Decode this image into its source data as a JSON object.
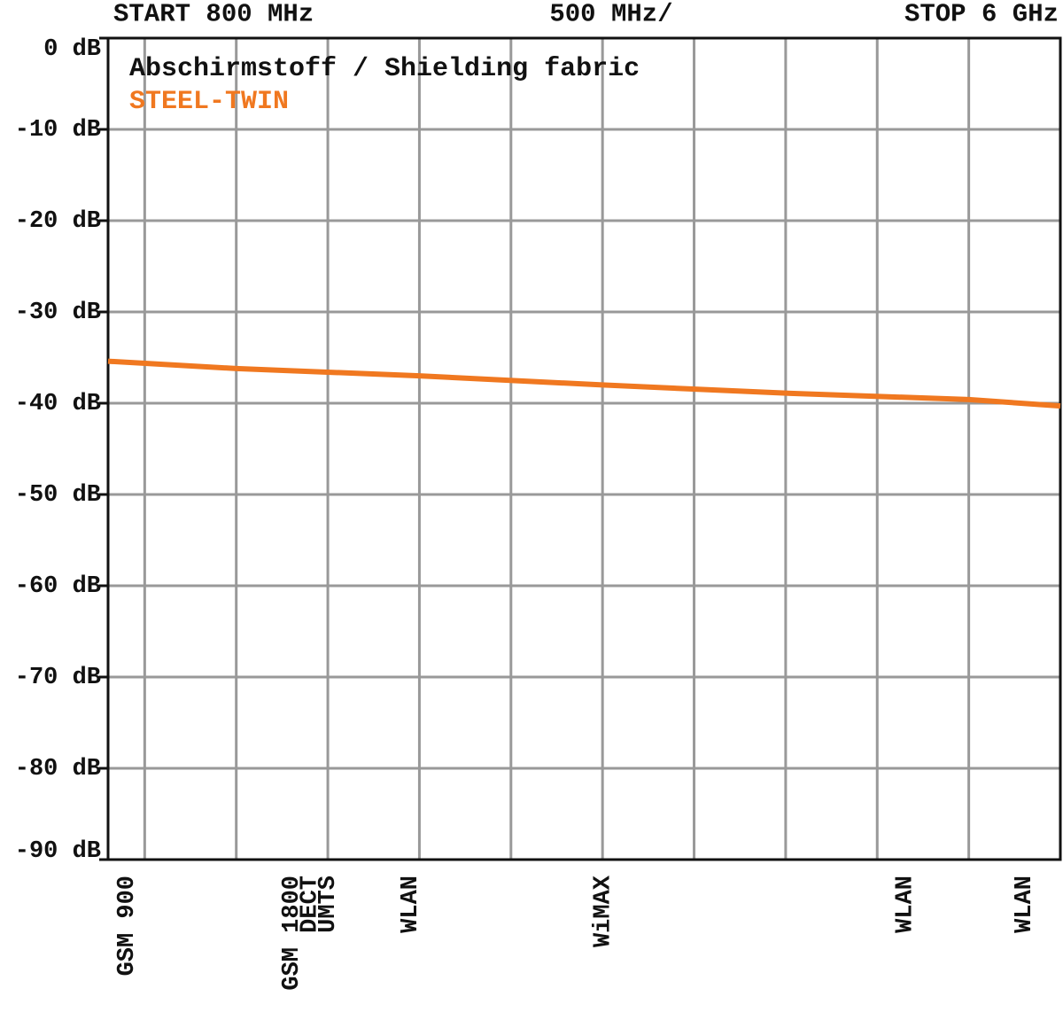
{
  "chart_data": {
    "type": "line",
    "title": "Abschirmstoff / Shielding fabric",
    "header_left": "START 800 MHz",
    "header_center": "500 MHz/",
    "header_right": "STOP 6 GHz",
    "x": [
      800,
      1500,
      2500,
      3500,
      4500,
      5500,
      6000
    ],
    "series": [
      {
        "name": "STEEL-TWIN",
        "color": "#f07820",
        "values": [
          -35.4,
          -36.2,
          -37.0,
          -38.0,
          -38.9,
          -39.6,
          -40.3
        ]
      }
    ],
    "xlim": [
      800,
      6000
    ],
    "xgrid": [
      1000,
      1500,
      2000,
      2500,
      3000,
      3500,
      4000,
      4500,
      5000,
      5500
    ],
    "ylim": [
      -90,
      0
    ],
    "yticks": [
      {
        "value": 0,
        "label": "0 dB"
      },
      {
        "value": -10,
        "label": "-10 dB"
      },
      {
        "value": -20,
        "label": "-20 dB"
      },
      {
        "value": -30,
        "label": "-30 dB"
      },
      {
        "value": -40,
        "label": "-40 dB"
      },
      {
        "value": -50,
        "label": "-50 dB"
      },
      {
        "value": -60,
        "label": "-60 dB"
      },
      {
        "value": -70,
        "label": "-70 dB"
      },
      {
        "value": -80,
        "label": "-80 dB"
      },
      {
        "value": -90,
        "label": "-90 dB"
      }
    ],
    "grid": true,
    "annotations": [
      {
        "label": "GSM 900",
        "x": 900
      },
      {
        "label": "GSM 1800",
        "x": 1800
      },
      {
        "label": "DECT",
        "x": 1900
      },
      {
        "label": "UMTS",
        "x": 2000
      },
      {
        "label": "WLAN",
        "x": 2450
      },
      {
        "label": "WiMAX",
        "x": 3500
      },
      {
        "label": "WLAN",
        "x": 5150
      },
      {
        "label": "WLAN",
        "x": 5800
      }
    ]
  }
}
